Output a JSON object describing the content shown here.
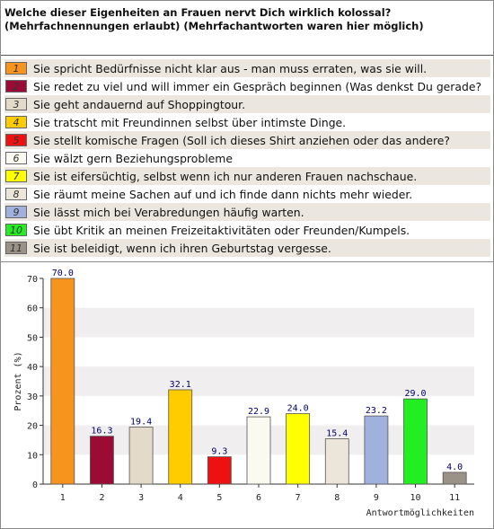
{
  "question": {
    "line1": "Welche dieser Eigenheiten an Frauen nervt Dich wirklich kolossal?",
    "line2": "(Mehrfachnennungen erlaubt) (Mehrfachantworten waren hier möglich)"
  },
  "answers": [
    {
      "num": "1",
      "label": "Sie spricht Bedürfnisse nicht klar aus - man muss erraten, was sie will.",
      "color": "#f7941d"
    },
    {
      "num": "2",
      "label": "Sie redet zu viel und will immer ein Gespräch beginnen (Was denkst Du gerade?",
      "color": "#9b0b36"
    },
    {
      "num": "3",
      "label": "Sie geht andauernd auf Shoppingtour.",
      "color": "#e3dac9"
    },
    {
      "num": "4",
      "label": "Sie tratscht mit Freundinnen selbst über intimste Dinge.",
      "color": "#ffcc00"
    },
    {
      "num": "5",
      "label": "Sie stellt komische Fragen (Soll ich dieses Shirt anziehen oder das andere?",
      "color": "#ee1111"
    },
    {
      "num": "6",
      "label": "Sie wälzt gern Beziehungsprobleme",
      "color": "#fafaf0"
    },
    {
      "num": "7",
      "label": "Sie ist eifersüchtig, selbst wenn ich nur anderen Frauen nachschaue.",
      "color": "#ffff00"
    },
    {
      "num": "8",
      "label": "Sie räumt meine Sachen auf und ich finde dann nichts mehr wieder.",
      "color": "#ece6da"
    },
    {
      "num": "9",
      "label": "Sie lässt mich bei Verabredungen häufig warten.",
      "color": "#9fb1dc"
    },
    {
      "num": "10",
      "label": "Sie übt Kritik an meinen Freizeitaktivitäten oder Freunden/Kumpels.",
      "color": "#22ee22"
    },
    {
      "num": "11",
      "label": "Sie ist beleidigt, wenn ich ihren Geburtstag vergesse.",
      "color": "#9a9286"
    }
  ],
  "chart_data": {
    "type": "bar",
    "categories": [
      "1",
      "2",
      "3",
      "4",
      "5",
      "6",
      "7",
      "8",
      "9",
      "10",
      "11"
    ],
    "values": [
      70.0,
      16.3,
      19.4,
      32.1,
      9.3,
      22.9,
      24.0,
      15.4,
      23.2,
      29.0,
      4.0
    ],
    "value_labels": [
      "70.0",
      "16.3",
      "19.4",
      "32.1",
      "9.3",
      "22.9",
      "24.0",
      "15.4",
      "23.2",
      "29.0",
      "4.0"
    ],
    "colors": [
      "#f7941d",
      "#9b0b36",
      "#e3dac9",
      "#ffcc00",
      "#ee1111",
      "#fafaf0",
      "#ffff00",
      "#ece6da",
      "#9fb1dc",
      "#22ee22",
      "#9a9286"
    ],
    "xlabel": "Antwortmöglichkeiten",
    "ylabel": "Prozent (%)",
    "ylim": [
      0,
      70
    ],
    "yticks": [
      "0",
      "10",
      "20",
      "30",
      "40",
      "50",
      "60",
      "70"
    ],
    "grid": "alternating horizontal bands",
    "band_color": "#f0eeee"
  }
}
